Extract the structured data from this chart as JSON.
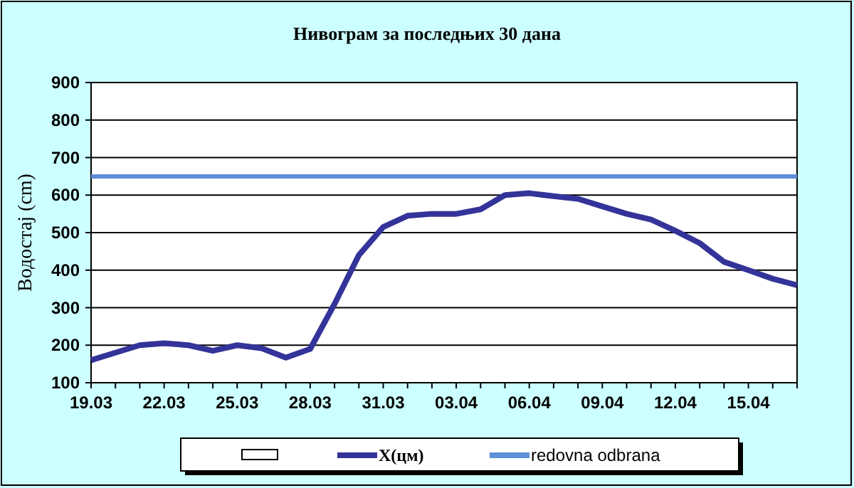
{
  "chart_data": {
    "type": "line",
    "title": "Нивограм за последњих 30 дана",
    "ylabel": "Водостај (cm)",
    "categories": [
      "19.03",
      null,
      null,
      "22.03",
      null,
      null,
      "25.03",
      null,
      null,
      "28.03",
      null,
      null,
      "31.03",
      null,
      null,
      "03.04",
      null,
      null,
      "06.04",
      null,
      null,
      "09.04",
      null,
      null,
      "12.04",
      null,
      null,
      "15.04",
      null,
      null
    ],
    "series": [
      {
        "name": "X(цм)",
        "color": "#333399",
        "values": [
          160,
          180,
          200,
          205,
          200,
          185,
          200,
          192,
          167,
          190,
          310,
          440,
          515,
          545,
          550,
          550,
          562,
          600,
          605,
          597,
          590,
          570,
          550,
          535,
          505,
          472,
          422,
          400,
          377,
          360
        ]
      }
    ],
    "ref_lines": [
      {
        "axis": "y",
        "value": 650,
        "label": "redovna odbrana",
        "color": "#5b8fd6"
      }
    ],
    "ylim": [
      100,
      900
    ],
    "yticks": [
      100,
      200,
      300,
      400,
      500,
      600,
      700,
      800,
      900
    ],
    "grid": "y",
    "legend": "bottom",
    "marker": "none",
    "line_style": "solid"
  }
}
